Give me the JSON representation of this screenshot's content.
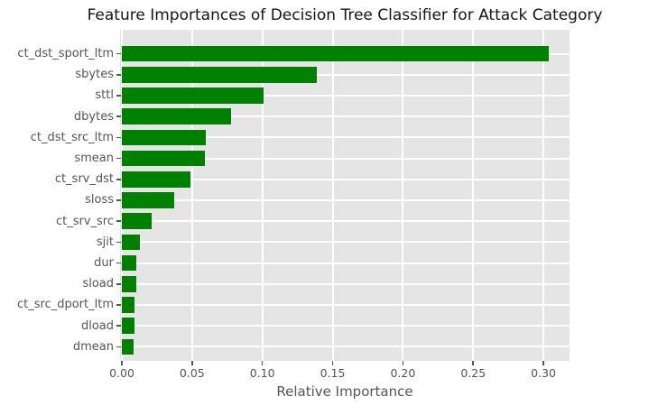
{
  "chart_data": {
    "type": "bar",
    "orientation": "horizontal",
    "style": "ggplot",
    "title": "Feature Importances of Decision Tree Classifier for Attack Category",
    "xlabel": "Relative Importance",
    "ylabel": "",
    "categories": [
      "ct_dst_sport_ltm",
      "sbytes",
      "sttl",
      "dbytes",
      "ct_dst_src_ltm",
      "smean",
      "ct_srv_dst",
      "sloss",
      "ct_srv_src",
      "sjit",
      "dur",
      "sload",
      "ct_src_dport_ltm",
      "dload",
      "dmean"
    ],
    "values": [
      0.304,
      0.139,
      0.101,
      0.078,
      0.06,
      0.059,
      0.049,
      0.037,
      0.021,
      0.013,
      0.01,
      0.01,
      0.009,
      0.009,
      0.008
    ],
    "x_ticks": [
      0.0,
      0.05,
      0.1,
      0.15,
      0.2,
      0.25,
      0.3
    ],
    "x_tick_labels": [
      "0.00",
      "0.05",
      "0.10",
      "0.15",
      "0.20",
      "0.25",
      "0.30"
    ],
    "xlim": [
      0,
      0.319
    ],
    "grid": true,
    "legend": false,
    "colors": {
      "bar": "#008000",
      "plot_background": "#e5e5e5",
      "figure_background": "#ffffff",
      "gridline": "#ffffff",
      "tick_text": "#555555",
      "title_text": "#141414"
    }
  }
}
